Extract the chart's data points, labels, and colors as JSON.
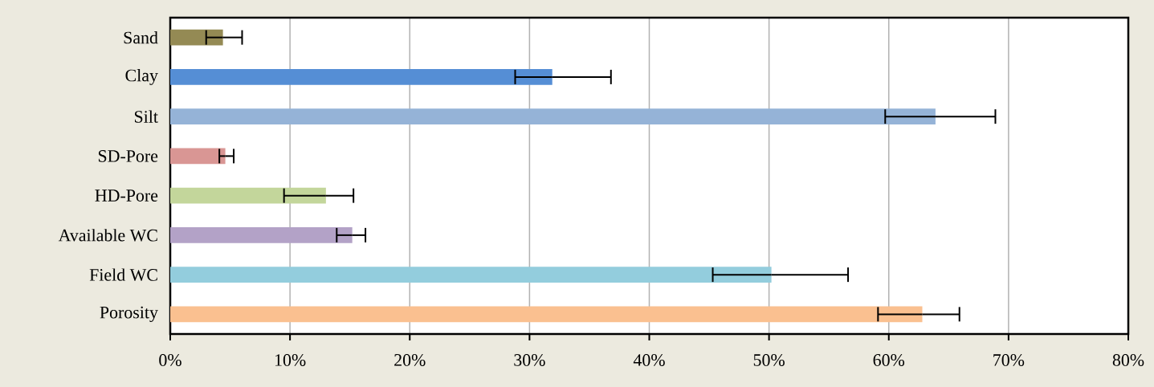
{
  "chart_data": {
    "type": "bar",
    "orientation": "horizontal",
    "categories": [
      "Sand",
      "Clay",
      "Silt",
      "SD-Pore",
      "HD-Pore",
      "Available WC",
      "Field WC",
      "Porosity"
    ],
    "values": [
      4.4,
      31.9,
      63.9,
      4.6,
      13.0,
      15.2,
      50.2,
      62.8
    ],
    "colors": [
      "#948a54",
      "#558ed5",
      "#95b3d7",
      "#d99694",
      "#c3d69b",
      "#b3a2c7",
      "#93cddd",
      "#fac090"
    ],
    "errors": [
      [
        3.0,
        6.0
      ],
      [
        28.8,
        36.8
      ],
      [
        59.7,
        68.9
      ],
      [
        4.1,
        5.3
      ],
      [
        9.5,
        15.3
      ],
      [
        13.9,
        16.3
      ],
      [
        45.3,
        56.6
      ],
      [
        59.1,
        65.9
      ]
    ],
    "xlim": [
      0,
      80
    ],
    "xticks": [
      {
        "value": 0,
        "label": "0%"
      },
      {
        "value": 10,
        "label": "10%"
      },
      {
        "value": 20,
        "label": "20%"
      },
      {
        "value": 30,
        "label": "30%"
      },
      {
        "value": 40,
        "label": "40%"
      },
      {
        "value": 50,
        "label": "50%"
      },
      {
        "value": 60,
        "label": "60%"
      },
      {
        "value": 70,
        "label": "70%"
      },
      {
        "value": 80,
        "label": "80%"
      }
    ],
    "grid": "x"
  }
}
